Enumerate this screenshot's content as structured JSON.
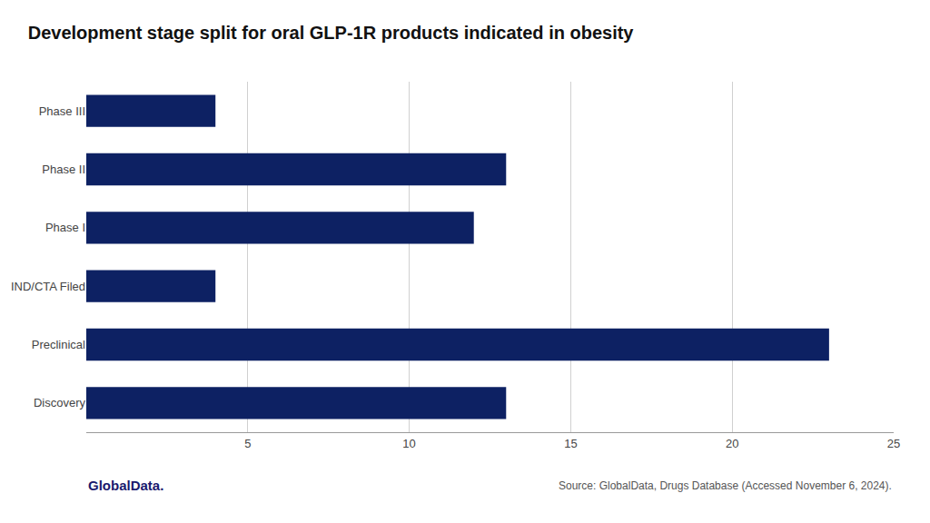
{
  "chart_data": {
    "type": "bar",
    "orientation": "horizontal",
    "title": "Development stage split for oral GLP-1R products indicated in obesity",
    "categories": [
      "Discovery",
      "Preclinical",
      "IND/CTA Filed",
      "Phase I",
      "Phase II",
      "Phase III"
    ],
    "values": [
      13,
      23,
      4,
      12,
      13,
      4
    ],
    "color": "#0d2163",
    "xlim": [
      0,
      25
    ],
    "xticks": [
      5,
      10,
      15,
      20,
      25
    ],
    "grid": true,
    "annotations": [
      "Source: GlobalData, Drugs Database (Accessed November 6, 2024).",
      "GlobalData."
    ]
  }
}
